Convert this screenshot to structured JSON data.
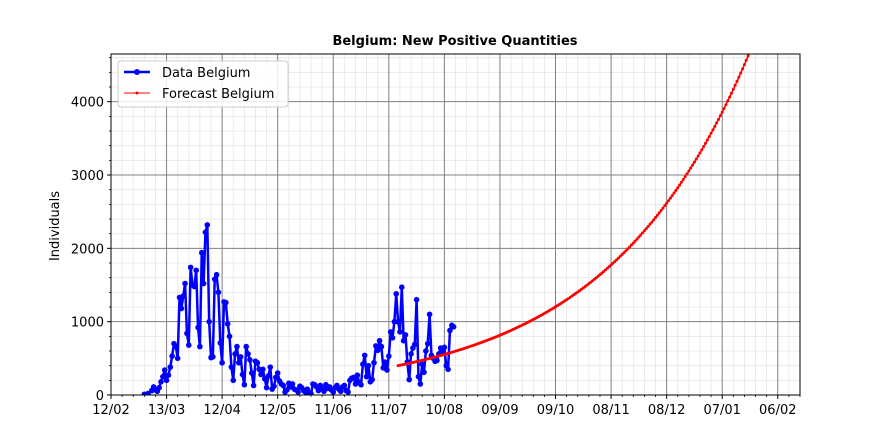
{
  "chart_data": {
    "type": "line",
    "title": "Belgium: New Positive Quantities",
    "xlabel": "",
    "ylabel": "Individuals",
    "ylim": [
      0,
      4650
    ],
    "x_range_days": [
      -18,
      354
    ],
    "grid": "major and minor",
    "legend_position": "top-left",
    "x_tick_labels": [
      "12/02",
      "13/03",
      "12/04",
      "12/05",
      "11/06",
      "11/07",
      "10/08",
      "09/09",
      "09/10",
      "08/11",
      "08/12",
      "07/01",
      "06/02"
    ],
    "y_tick_labels": [
      "0",
      "1000",
      "2000",
      "3000",
      "4000"
    ],
    "y_ticks": [
      0,
      1000,
      2000,
      3000,
      4000
    ],
    "series": [
      {
        "name": "Data Belgium",
        "color": "#0000ff",
        "points": [
          [
            0,
            10
          ],
          [
            2,
            20
          ],
          [
            4,
            60
          ],
          [
            5,
            110
          ],
          [
            6,
            70
          ],
          [
            7,
            50
          ],
          [
            8,
            100
          ],
          [
            9,
            180
          ],
          [
            10,
            250
          ],
          [
            11,
            340
          ],
          [
            12,
            200
          ],
          [
            13,
            270
          ],
          [
            14,
            380
          ],
          [
            15,
            530
          ],
          [
            16,
            700
          ],
          [
            17,
            660
          ],
          [
            18,
            500
          ],
          [
            19,
            1330
          ],
          [
            20,
            1180
          ],
          [
            21,
            1350
          ],
          [
            22,
            1520
          ],
          [
            23,
            840
          ],
          [
            24,
            680
          ],
          [
            25,
            1740
          ],
          [
            26,
            1500
          ],
          [
            27,
            1480
          ],
          [
            28,
            1700
          ],
          [
            29,
            920
          ],
          [
            30,
            660
          ],
          [
            31,
            1940
          ],
          [
            32,
            1520
          ],
          [
            33,
            2220
          ],
          [
            34,
            2320
          ],
          [
            35,
            1000
          ],
          [
            36,
            510
          ],
          [
            37,
            520
          ],
          [
            38,
            1580
          ],
          [
            39,
            1640
          ],
          [
            40,
            1400
          ],
          [
            41,
            710
          ],
          [
            42,
            440
          ],
          [
            43,
            1270
          ],
          [
            44,
            1260
          ],
          [
            45,
            970
          ],
          [
            46,
            800
          ],
          [
            47,
            380
          ],
          [
            48,
            200
          ],
          [
            49,
            560
          ],
          [
            50,
            660
          ],
          [
            51,
            440
          ],
          [
            52,
            520
          ],
          [
            53,
            280
          ],
          [
            54,
            140
          ],
          [
            55,
            660
          ],
          [
            56,
            560
          ],
          [
            57,
            480
          ],
          [
            58,
            300
          ],
          [
            59,
            130
          ],
          [
            60,
            460
          ],
          [
            61,
            440
          ],
          [
            62,
            350
          ],
          [
            63,
            280
          ],
          [
            64,
            350
          ],
          [
            65,
            220
          ],
          [
            66,
            100
          ],
          [
            67,
            260
          ],
          [
            68,
            380
          ],
          [
            69,
            80
          ],
          [
            70,
            120
          ],
          [
            71,
            240
          ],
          [
            72,
            300
          ],
          [
            73,
            190
          ],
          [
            74,
            150
          ],
          [
            75,
            130
          ],
          [
            76,
            40
          ],
          [
            77,
            70
          ],
          [
            78,
            160
          ],
          [
            79,
            110
          ],
          [
            80,
            150
          ],
          [
            81,
            80
          ],
          [
            82,
            70
          ],
          [
            83,
            40
          ],
          [
            84,
            120
          ],
          [
            85,
            100
          ],
          [
            86,
            60
          ],
          [
            87,
            40
          ],
          [
            88,
            80
          ],
          [
            89,
            30
          ],
          [
            90,
            20
          ],
          [
            91,
            150
          ],
          [
            92,
            140
          ],
          [
            93,
            110
          ],
          [
            94,
            60
          ],
          [
            95,
            130
          ],
          [
            96,
            90
          ],
          [
            97,
            50
          ],
          [
            98,
            140
          ],
          [
            99,
            90
          ],
          [
            100,
            110
          ],
          [
            101,
            70
          ],
          [
            102,
            40
          ],
          [
            103,
            100
          ],
          [
            104,
            130
          ],
          [
            105,
            80
          ],
          [
            106,
            50
          ],
          [
            107,
            110
          ],
          [
            108,
            130
          ],
          [
            109,
            60
          ],
          [
            110,
            40
          ],
          [
            111,
            200
          ],
          [
            112,
            230
          ],
          [
            113,
            240
          ],
          [
            114,
            150
          ],
          [
            115,
            270
          ],
          [
            116,
            170
          ],
          [
            117,
            140
          ],
          [
            118,
            420
          ],
          [
            119,
            540
          ],
          [
            120,
            250
          ],
          [
            121,
            400
          ],
          [
            122,
            180
          ],
          [
            123,
            210
          ],
          [
            124,
            440
          ],
          [
            125,
            670
          ],
          [
            126,
            610
          ],
          [
            127,
            740
          ],
          [
            128,
            660
          ],
          [
            129,
            370
          ],
          [
            130,
            450
          ],
          [
            131,
            340
          ],
          [
            132,
            530
          ],
          [
            133,
            860
          ],
          [
            134,
            780
          ],
          [
            135,
            1000
          ],
          [
            136,
            1380
          ],
          [
            137,
            1000
          ],
          [
            138,
            860
          ],
          [
            139,
            1470
          ],
          [
            140,
            740
          ],
          [
            141,
            820
          ],
          [
            142,
            450
          ],
          [
            143,
            210
          ],
          [
            144,
            560
          ],
          [
            145,
            640
          ],
          [
            146,
            690
          ],
          [
            147,
            1300
          ],
          [
            148,
            250
          ],
          [
            149,
            150
          ],
          [
            150,
            420
          ],
          [
            151,
            310
          ],
          [
            152,
            600
          ],
          [
            153,
            700
          ],
          [
            154,
            1100
          ],
          [
            155,
            540
          ],
          [
            156,
            500
          ],
          [
            157,
            460
          ],
          [
            158,
            470
          ],
          [
            159,
            560
          ],
          [
            160,
            640
          ],
          [
            161,
            600
          ],
          [
            162,
            650
          ],
          [
            163,
            400
          ],
          [
            164,
            350
          ],
          [
            165,
            880
          ],
          [
            166,
            950
          ],
          [
            167,
            930
          ]
        ]
      },
      {
        "name": "Forecast Belgium",
        "color": "#ff0000",
        "start_day": 137,
        "end_day": 330,
        "start_value": 400,
        "growth_rate": 0.01295
      }
    ]
  }
}
